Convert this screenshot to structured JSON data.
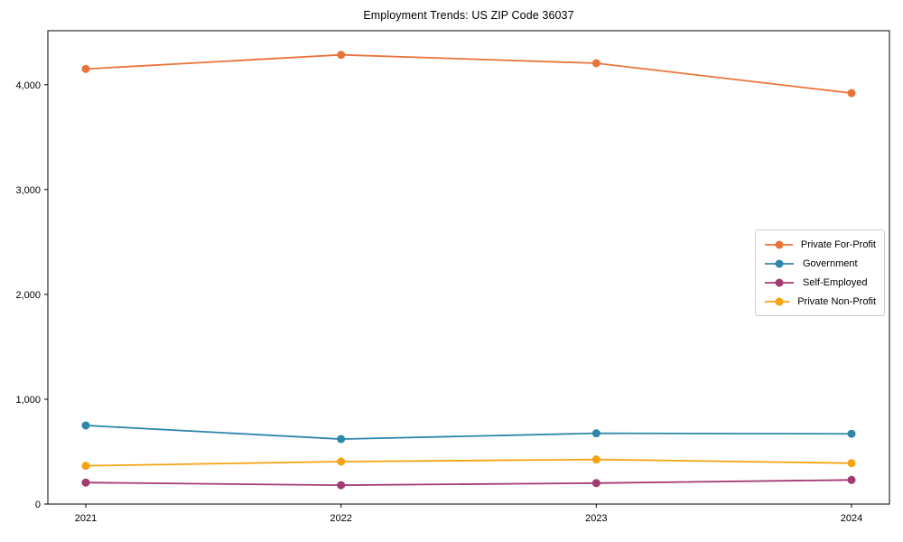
{
  "title": "Employment Trends: US ZIP Code 36037",
  "chart_data": {
    "type": "line",
    "title": "Employment Trends: US ZIP Code 36037",
    "xlabel": "",
    "ylabel": "",
    "x": [
      2021,
      2022,
      2023,
      2024
    ],
    "xtick_labels": [
      "2021",
      "2022",
      "2023",
      "2024"
    ],
    "yticks": [
      0,
      1000,
      2000,
      3000,
      4000
    ],
    "ytick_labels": [
      "0",
      "1,000",
      "2,000",
      "3,000",
      "4,000"
    ],
    "ylim": [
      0,
      4515
    ],
    "grid": false,
    "legend_position": "center right",
    "frame": true,
    "series": [
      {
        "name": "Private For-Profit",
        "color": "#E8743B",
        "values": [
          4150,
          4285,
          4205,
          3920
        ]
      },
      {
        "name": "Government",
        "color": "#2E86AB",
        "values": [
          750,
          620,
          675,
          670
        ]
      },
      {
        "name": "Self-Employed",
        "color": "#A23B72",
        "values": [
          205,
          180,
          200,
          230
        ]
      },
      {
        "name": "Private Non-Profit",
        "color": "#F5A311",
        "values": [
          365,
          405,
          425,
          390
        ]
      }
    ]
  }
}
